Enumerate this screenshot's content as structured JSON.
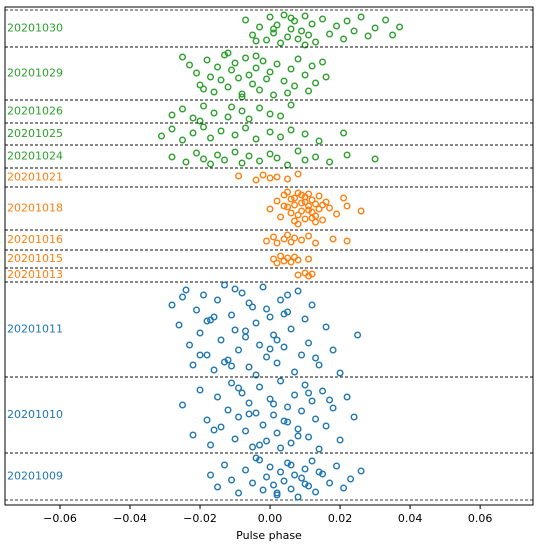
{
  "chart_data": {
    "type": "scatter",
    "xlabel": "Pulse phase",
    "xlim": [
      -0.0757,
      0.0751
    ],
    "ylim": [
      0,
      498
    ],
    "xticks": [
      {
        "value": -0.06,
        "label": "−0.06"
      },
      {
        "value": -0.04,
        "label": "−0.04"
      },
      {
        "value": -0.02,
        "label": "−0.02"
      },
      {
        "value": 0,
        "label": "0.00"
      },
      {
        "value": 0.02,
        "label": "0.02"
      },
      {
        "value": 0.04,
        "label": "0.04"
      },
      {
        "value": 0.06,
        "label": "0.06"
      }
    ],
    "series": [
      {
        "name": "20201030",
        "color": "#2ca02c",
        "band": [
          458,
          495
        ],
        "x": [
          -0.007,
          -0.005,
          -0.003,
          -0.001,
          0.0,
          0.001,
          0.002,
          0.003,
          0.004,
          0.005,
          0.006,
          0.007,
          0.008,
          0.009,
          0.01,
          0.011,
          0.012,
          0.013,
          0.015,
          0.017,
          0.019,
          0.021,
          0.022,
          0.024,
          0.026,
          0.028,
          0.03,
          0.033,
          0.035,
          0.037,
          -0.004,
          0.006,
          0.01,
          0.001
        ],
        "values": [
          485,
          470,
          478,
          465,
          488,
          472,
          480,
          462,
          490,
          468,
          476,
          484,
          466,
          474,
          489,
          470,
          481,
          463,
          486,
          471,
          479,
          466,
          484,
          474,
          488,
          469,
          477,
          485,
          470,
          478,
          464,
          487,
          460,
          476
        ]
      },
      {
        "name": "20201029",
        "color": "#2ca02c",
        "band": [
          405,
          458
        ],
        "x": [
          -0.025,
          -0.023,
          -0.021,
          -0.02,
          -0.018,
          -0.017,
          -0.016,
          -0.015,
          -0.014,
          -0.013,
          -0.012,
          -0.011,
          -0.01,
          -0.009,
          -0.008,
          -0.007,
          -0.006,
          -0.005,
          -0.004,
          -0.003,
          -0.002,
          -0.001,
          0.0,
          0.001,
          0.002,
          0.004,
          0.006,
          0.007,
          0.008,
          0.01,
          0.011,
          0.012,
          0.013,
          0.015,
          0.016,
          -0.019,
          -0.012,
          -0.008,
          -0.004,
          0.005
        ],
        "values": [
          448,
          440,
          432,
          420,
          445,
          428,
          413,
          438,
          425,
          450,
          418,
          435,
          442,
          427,
          411,
          447,
          430,
          421,
          437,
          415,
          444,
          426,
          433,
          410,
          441,
          424,
          436,
          419,
          446,
          430,
          414,
          439,
          422,
          443,
          428,
          416,
          452,
          408,
          449,
          412
        ]
      },
      {
        "name": "20201026",
        "color": "#2ca02c",
        "band": [
          382,
          405
        ],
        "x": [
          -0.028,
          -0.025,
          -0.022,
          -0.019,
          -0.016,
          -0.012,
          -0.011,
          -0.008,
          -0.006,
          -0.003,
          0.0,
          0.003,
          0.006,
          -0.02
        ],
        "values": [
          390,
          396,
          387,
          399,
          392,
          388,
          398,
          394,
          386,
          397,
          391,
          389,
          400,
          384
        ]
      },
      {
        "name": "20201025",
        "color": "#2ca02c",
        "band": [
          360,
          382
        ],
        "x": [
          -0.031,
          -0.028,
          -0.025,
          -0.022,
          -0.019,
          -0.017,
          -0.014,
          -0.01,
          -0.007,
          -0.004,
          0.0,
          0.003,
          0.006,
          0.01,
          0.014,
          0.021
        ],
        "values": [
          369,
          376,
          365,
          372,
          378,
          367,
          374,
          370,
          377,
          366,
          373,
          368,
          375,
          371,
          364,
          372
        ]
      },
      {
        "name": "20201024",
        "color": "#2ca02c",
        "band": [
          337,
          360
        ],
        "x": [
          -0.028,
          -0.024,
          -0.021,
          -0.019,
          -0.017,
          -0.015,
          -0.013,
          -0.01,
          -0.008,
          -0.006,
          -0.003,
          0.0,
          0.002,
          0.005,
          0.008,
          0.01,
          0.013,
          0.017,
          0.022,
          0.03
        ],
        "values": [
          348,
          343,
          352,
          346,
          341,
          350,
          345,
          353,
          342,
          349,
          344,
          351,
          347,
          340,
          354,
          345,
          348,
          343,
          350,
          346
        ]
      },
      {
        "name": "20201021",
        "color": "#ff7f0e",
        "band": [
          318,
          337
        ],
        "x": [
          -0.009,
          -0.004,
          -0.002,
          0.0,
          0.002,
          0.005,
          0.008
        ],
        "values": [
          329,
          325,
          330,
          327,
          328,
          326,
          331
        ]
      },
      {
        "name": "20201018",
        "color": "#ff7f0e",
        "band": [
          275,
          318
        ],
        "x": [
          0.0,
          0.002,
          0.003,
          0.004,
          0.005,
          0.006,
          0.006,
          0.007,
          0.007,
          0.008,
          0.008,
          0.009,
          0.009,
          0.01,
          0.01,
          0.011,
          0.011,
          0.012,
          0.012,
          0.013,
          0.013,
          0.014,
          0.014,
          0.015,
          0.016,
          0.017,
          0.019,
          0.021,
          0.022,
          0.026,
          0.005,
          0.008,
          0.01,
          0.012,
          0.004,
          0.009,
          0.011,
          0.013,
          0.007,
          0.015
        ],
        "values": [
          296,
          304,
          288,
          310,
          298,
          292,
          306,
          284,
          300,
          312,
          290,
          302,
          294,
          308,
          286,
          299,
          311,
          293,
          305,
          289,
          301,
          296,
          309,
          285,
          303,
          297,
          291,
          307,
          299,
          294,
          313,
          281,
          303,
          287,
          299,
          310,
          295,
          283,
          307,
          300
        ]
      },
      {
        "name": "20201016",
        "color": "#ff7f0e",
        "band": [
          255,
          275
        ],
        "x": [
          -0.001,
          0.001,
          0.002,
          0.004,
          0.005,
          0.006,
          0.007,
          0.009,
          0.011,
          0.013,
          0.018,
          0.022
        ],
        "values": [
          264,
          268,
          262,
          266,
          270,
          263,
          267,
          265,
          269,
          262,
          266,
          264
        ]
      },
      {
        "name": "20201015",
        "color": "#ff7f0e",
        "band": [
          237,
          255
        ],
        "x": [
          0.001,
          0.002,
          0.003,
          0.004,
          0.005,
          0.006,
          0.007,
          0.008,
          0.011
        ],
        "values": [
          246,
          242,
          249,
          244,
          247,
          243,
          248,
          245,
          246
        ]
      },
      {
        "name": "20201013",
        "color": "#ff7f0e",
        "band": [
          223,
          237
        ],
        "x": [
          0.008,
          0.01,
          0.011,
          0.012
        ],
        "values": [
          230,
          232,
          229,
          231
        ]
      },
      {
        "name": "20201011",
        "color": "#1f77b4",
        "band": [
          128,
          223
        ],
        "x": [
          -0.028,
          -0.026,
          -0.024,
          -0.023,
          -0.022,
          -0.021,
          -0.02,
          -0.019,
          -0.018,
          -0.017,
          -0.016,
          -0.015,
          -0.014,
          -0.013,
          -0.012,
          -0.011,
          -0.01,
          -0.009,
          -0.008,
          -0.007,
          -0.006,
          -0.005,
          -0.004,
          -0.003,
          -0.002,
          -0.001,
          0.0,
          0.001,
          0.002,
          0.003,
          0.004,
          0.005,
          0.006,
          0.007,
          0.008,
          0.009,
          0.01,
          0.011,
          0.012,
          0.014,
          0.016,
          0.018,
          0.02,
          0.025,
          -0.025,
          -0.02,
          -0.016,
          -0.013,
          -0.01,
          -0.007,
          -0.004,
          -0.001,
          0.002,
          0.005,
          -0.018,
          -0.011,
          -0.006,
          0.0,
          0.004,
          0.013
        ],
        "values": [
          200,
          180,
          215,
          160,
          140,
          195,
          172,
          210,
          150,
          185,
          135,
          205,
          165,
          220,
          145,
          190,
          175,
          155,
          212,
          168,
          138,
          198,
          182,
          160,
          218,
          148,
          188,
          170,
          142,
          205,
          158,
          193,
          176,
          133,
          214,
          150,
          186,
          162,
          200,
          140,
          178,
          155,
          132,
          170,
          208,
          150,
          188,
          143,
          216,
          174,
          130,
          196,
          165,
          210,
          184,
          139,
          202,
          156,
          191,
          147
        ]
      },
      {
        "name": "20201010",
        "color": "#1f77b4",
        "band": [
          52,
          128
        ],
        "x": [
          -0.025,
          -0.022,
          -0.02,
          -0.018,
          -0.017,
          -0.015,
          -0.014,
          -0.012,
          -0.011,
          -0.01,
          -0.009,
          -0.008,
          -0.007,
          -0.006,
          -0.005,
          -0.004,
          -0.003,
          -0.002,
          -0.001,
          0.0,
          0.001,
          0.002,
          0.003,
          0.004,
          0.005,
          0.006,
          0.007,
          0.008,
          0.009,
          0.01,
          0.011,
          0.012,
          0.013,
          0.014,
          0.015,
          0.016,
          0.018,
          0.02,
          0.022,
          0.024,
          -0.016,
          -0.009,
          -0.003,
          0.001,
          0.005,
          0.008,
          0.011,
          -0.006,
          0.003,
          0.017
        ],
        "values": [
          100,
          70,
          115,
          85,
          60,
          108,
          78,
          95,
          122,
          66,
          88,
          112,
          74,
          102,
          58,
          92,
          118,
          80,
          64,
          106,
          90,
          72,
          124,
          84,
          98,
          62,
          110,
          76,
          94,
          120,
          68,
          104,
          86,
          56,
          114,
          79,
          97,
          65,
          108,
          88,
          75,
          117,
          60,
          101,
          83,
          69,
          112,
          91,
          57,
          105
        ]
      },
      {
        "name": "20201009",
        "color": "#1f77b4",
        "band": [
          5,
          52
        ],
        "x": [
          -0.017,
          -0.015,
          -0.013,
          -0.011,
          -0.009,
          -0.007,
          -0.005,
          -0.003,
          -0.002,
          -0.001,
          0.0,
          0.001,
          0.002,
          0.003,
          0.004,
          0.005,
          0.006,
          0.007,
          0.008,
          0.009,
          0.01,
          0.011,
          0.012,
          0.013,
          0.015,
          0.017,
          0.019,
          0.021,
          0.023,
          0.026,
          -0.004,
          0.002,
          0.006,
          0.01,
          0.014
        ],
        "values": [
          30,
          18,
          40,
          25,
          12,
          35,
          22,
          45,
          15,
          28,
          38,
          20,
          10,
          33,
          24,
          42,
          16,
          30,
          8,
          27,
          36,
          19,
          44,
          13,
          31,
          22,
          39,
          17,
          26,
          34,
          47,
          12,
          40,
          21,
          33
        ]
      }
    ]
  }
}
